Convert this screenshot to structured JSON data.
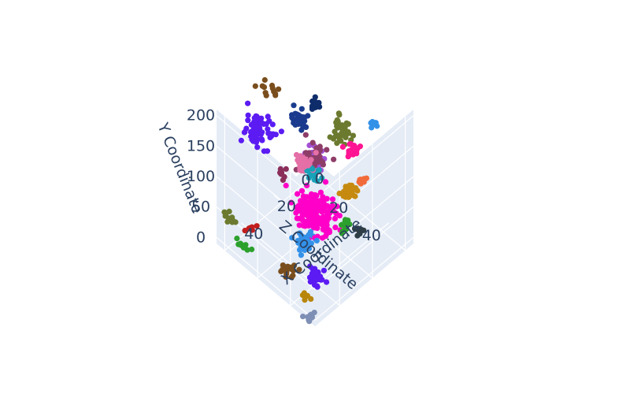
{
  "chart_data": {
    "type": "scatter3d",
    "title": "",
    "axes": {
      "x": {
        "label": "X Coordinate",
        "ticks": [
          "0",
          "20",
          "40"
        ],
        "range": [
          -5,
          55
        ]
      },
      "y": {
        "label": "Y Coordinate",
        "ticks": [
          "0",
          "50",
          "100",
          "150",
          "200"
        ],
        "range": [
          -10,
          210
        ]
      },
      "z": {
        "label": "Z Coordinate",
        "ticks": [
          "0",
          "20",
          "40"
        ],
        "range": [
          -5,
          55
        ]
      }
    },
    "background": {
      "pane_color": "#e5ecf6",
      "grid": true
    },
    "clusters": [
      {
        "color": "#ff00c8",
        "x": 26,
        "y": 45,
        "z": 26,
        "sx": 4,
        "sy": 12,
        "sz": 5,
        "n": 160
      },
      {
        "color": "#5b1bf2",
        "x": 40,
        "y": 165,
        "z": 5,
        "sx": 3,
        "sy": 10,
        "sz": 3,
        "n": 70
      },
      {
        "color": "#8e3d68",
        "x": 20,
        "y": 110,
        "z": 20,
        "sx": 3,
        "sy": 7,
        "sz": 3,
        "n": 50
      },
      {
        "color": "#e56fa7",
        "x": 22,
        "y": 95,
        "z": 16,
        "sx": 2,
        "sy": 6,
        "sz": 2,
        "n": 35
      },
      {
        "color": "#3391e8",
        "x": 33,
        "y": 18,
        "z": 27,
        "sx": 2,
        "sy": 5,
        "sz": 2,
        "n": 40
      },
      {
        "color": "#6b7a2f",
        "x": 10,
        "y": 145,
        "z": 26,
        "sx": 2,
        "sy": 10,
        "sz": 2,
        "n": 45
      },
      {
        "color": "#c68a10",
        "x": 9,
        "y": 45,
        "z": 29,
        "sx": 2,
        "sy": 4,
        "sz": 2,
        "n": 30
      },
      {
        "color": "#5b1bf2",
        "x": 34,
        "y": -20,
        "z": 35,
        "sx": 2,
        "sy": 6,
        "sz": 2,
        "n": 40
      },
      {
        "color": "#1a3b8e",
        "x": 21,
        "y": 155,
        "z": 11,
        "sx": 2,
        "sy": 5,
        "sz": 2,
        "n": 30
      },
      {
        "color": "#ff1493",
        "x": 2,
        "y": 90,
        "z": 24,
        "sx": 1.5,
        "sy": 3,
        "sz": 1.5,
        "n": 25
      },
      {
        "color": "#17a2b8",
        "x": 21,
        "y": 85,
        "z": 20,
        "sx": 1.5,
        "sy": 3,
        "sz": 1.5,
        "n": 20
      },
      {
        "color": "#2ca02c",
        "x": 13,
        "y": 5,
        "z": 31,
        "sx": 1,
        "sy": 3,
        "sz": 1,
        "n": 15
      },
      {
        "color": "#2f3e46",
        "x": 10,
        "y": 5,
        "z": 37,
        "sx": 1,
        "sy": 2,
        "sz": 1,
        "n": 12
      },
      {
        "color": "#7a4e1c",
        "x": 42,
        "y": -10,
        "z": 26,
        "sx": 2,
        "sy": 2,
        "sz": 2,
        "n": 20
      },
      {
        "color": "#0f2d6b",
        "x": 20,
        "y": 195,
        "z": 20,
        "sx": 1.5,
        "sy": 2,
        "sz": 2,
        "n": 15
      },
      {
        "color": "#7a4e1c",
        "x": 33,
        "y": 220,
        "z": 6,
        "sx": 2,
        "sy": 2,
        "sz": 2,
        "n": 12
      },
      {
        "color": "#f26b3a",
        "x": 4,
        "y": 65,
        "z": 33,
        "sx": 1,
        "sy": 3,
        "sz": 1,
        "n": 12
      },
      {
        "color": "#6b7a2f",
        "x": 55,
        "y": 50,
        "z": 3,
        "sx": 1,
        "sy": 3,
        "sz": 2,
        "n": 10
      },
      {
        "color": "#2ca02c",
        "x": 56,
        "y": 30,
        "z": 12,
        "sx": 1,
        "sy": 2,
        "sz": 2,
        "n": 10
      },
      {
        "color": "#c21d1d",
        "x": 55,
        "y": 60,
        "z": 15,
        "sx": 1,
        "sy": 2,
        "sz": 1,
        "n": 8
      },
      {
        "color": "#7e8fb5",
        "x": 52,
        "y": -20,
        "z": 48,
        "sx": 2,
        "sy": 2,
        "sz": 1,
        "n": 12
      },
      {
        "color": "#b8860b",
        "x": 48,
        "y": -5,
        "z": 42,
        "sx": 1,
        "sy": 2,
        "sz": 1,
        "n": 8
      },
      {
        "color": "#a352d6",
        "x": 22,
        "y": 120,
        "z": 22,
        "sx": 2,
        "sy": 10,
        "sz": 2,
        "n": 15
      },
      {
        "color": "#3391e8",
        "x": -8,
        "y": 115,
        "z": 27,
        "sx": 1,
        "sy": 2,
        "sz": 1,
        "n": 8
      },
      {
        "color": "#8b2e5a",
        "x": 25,
        "y": 60,
        "z": 5,
        "sx": 1,
        "sy": 2,
        "sz": 1,
        "n": 8
      }
    ]
  }
}
